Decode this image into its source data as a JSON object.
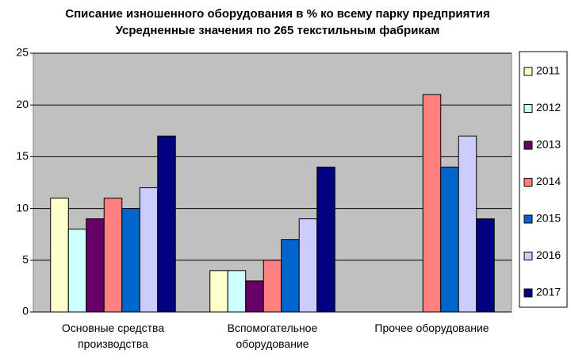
{
  "chart_data": {
    "type": "bar",
    "title": "Списание изношенного оборудования в % ко всему парку предприятия",
    "subtitle": "Усредненные значения по 265 текстильным фабрикам",
    "categories": [
      "Основные средства производства",
      "Вспомогательное оборудование",
      "Прочее оборудование"
    ],
    "series": [
      {
        "name": "2011",
        "color": "#ffffcc",
        "values": [
          11,
          4,
          null
        ]
      },
      {
        "name": "2012",
        "color": "#ccffff",
        "values": [
          8,
          4,
          null
        ]
      },
      {
        "name": "2013",
        "color": "#660066",
        "values": [
          9,
          3,
          null
        ]
      },
      {
        "name": "2014",
        "color": "#ff8080",
        "values": [
          11,
          5,
          21
        ]
      },
      {
        "name": "2015",
        "color": "#0066cc",
        "values": [
          10,
          7,
          14
        ]
      },
      {
        "name": "2016",
        "color": "#ccccff",
        "values": [
          12,
          9,
          17
        ]
      },
      {
        "name": "2017",
        "color": "#000080",
        "values": [
          17,
          14,
          9
        ]
      }
    ],
    "ylim": [
      0,
      25
    ],
    "yticks": [
      0,
      5,
      10,
      15,
      20,
      25
    ],
    "grid": true,
    "legend": "right"
  }
}
